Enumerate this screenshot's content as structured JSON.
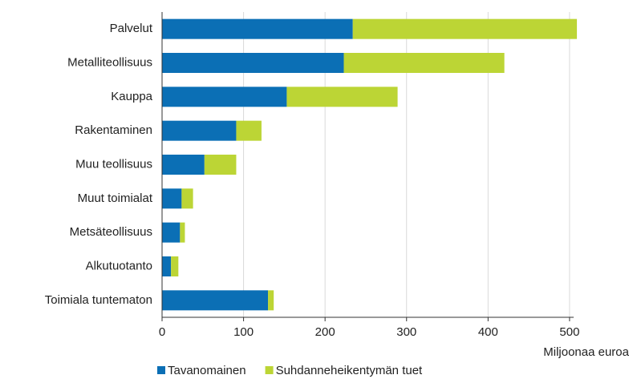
{
  "chart_data": {
    "type": "stacked-barh",
    "categories": [
      "Palvelut",
      "Metalliteollisuus",
      "Kauppa",
      "Rakentaminen",
      "Muu teollisuus",
      "Muut toimialat",
      "Metsäteollisuus",
      "Alkutuotanto",
      "Toimiala tuntematon"
    ],
    "series": [
      {
        "name": "Tavanomainen",
        "color": "#0b6fb5",
        "values": [
          234,
          223,
          153,
          91,
          52,
          24,
          22,
          11,
          130
        ]
      },
      {
        "name": "Suhdanneheikentymän tuet",
        "color": "#bcd535",
        "values": [
          275,
          197,
          136,
          31,
          39,
          14,
          6,
          9,
          7
        ]
      }
    ],
    "xlabel": "Miljoonaa euroa",
    "xlim": [
      0,
      505
    ],
    "xticks": [
      0,
      100,
      200,
      300,
      400,
      500
    ],
    "grid": true,
    "legend": "bottom"
  }
}
